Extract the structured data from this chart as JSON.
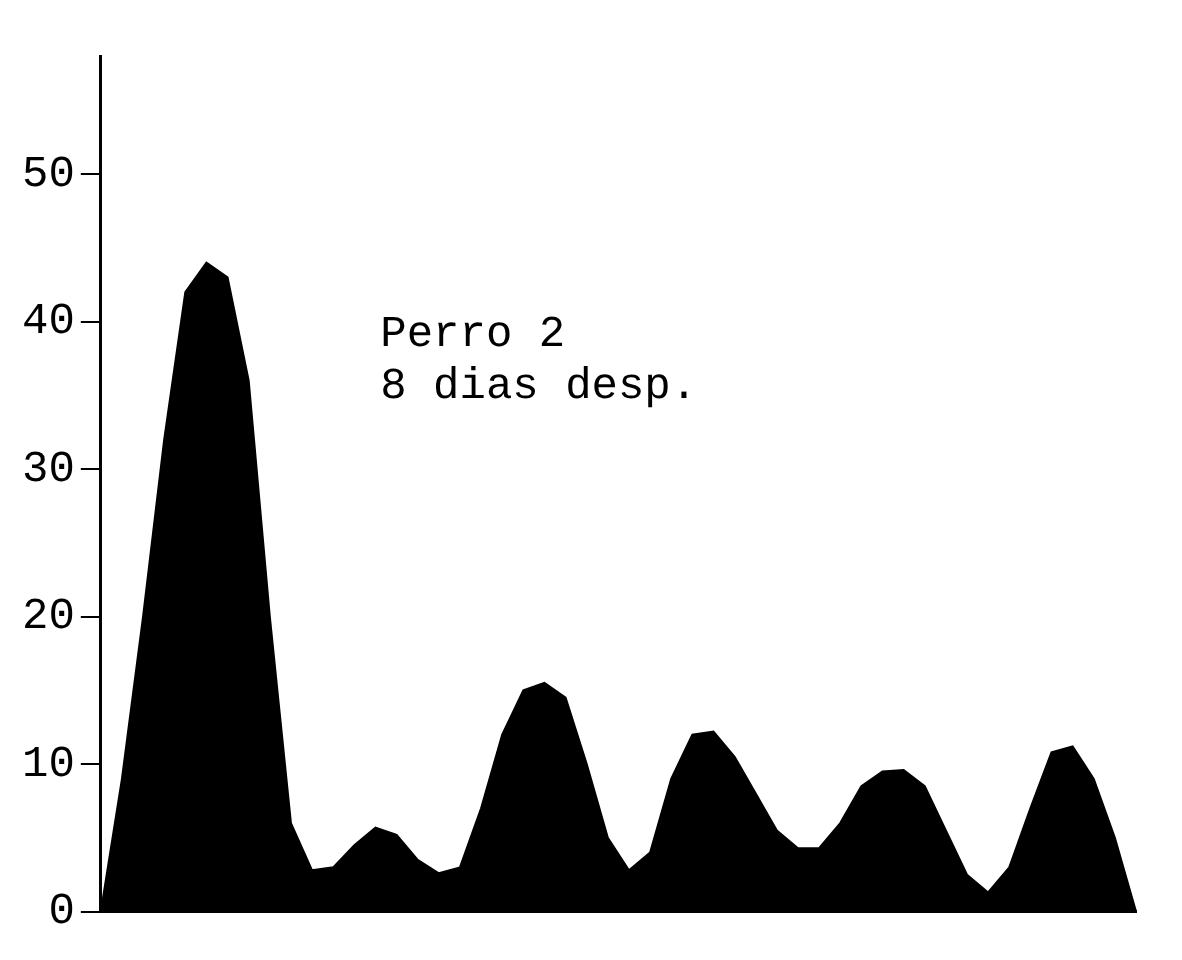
{
  "chart_data": {
    "type": "area",
    "categories": [
      null,
      null,
      null,
      null,
      null,
      null,
      null,
      null,
      null,
      null,
      null,
      null,
      null,
      null,
      null,
      null,
      null,
      null,
      null,
      null,
      null,
      null,
      null,
      null,
      null,
      null,
      null,
      null,
      null,
      null,
      null,
      null,
      null,
      null,
      null,
      null,
      null,
      null,
      null,
      null,
      null,
      null,
      null,
      null,
      null,
      null,
      null,
      null,
      null,
      null
    ],
    "series": [
      {
        "color": "#000000",
        "values": [
          0,
          9,
          20,
          32,
          42,
          44,
          43,
          36,
          20,
          6,
          2.8,
          3,
          4.5,
          5.7,
          5.2,
          3.5,
          2.6,
          3,
          7,
          12,
          15,
          15.5,
          14.5,
          10,
          5,
          2.8,
          4,
          9,
          12,
          12.2,
          10.5,
          8,
          5.5,
          4.3,
          4.3,
          6,
          8.5,
          9.5,
          9.6,
          8.5,
          5.5,
          2.5,
          1.3,
          3,
          7,
          10.8,
          11.2,
          9,
          5,
          0
        ]
      }
    ],
    "ylim": [
      0,
      58
    ],
    "yticks": [
      0,
      10,
      20,
      30,
      40,
      50
    ],
    "tick_labels": "y",
    "grid": false,
    "legend": false,
    "annotations": [
      "Perro 2\n8 dias desp."
    ]
  }
}
